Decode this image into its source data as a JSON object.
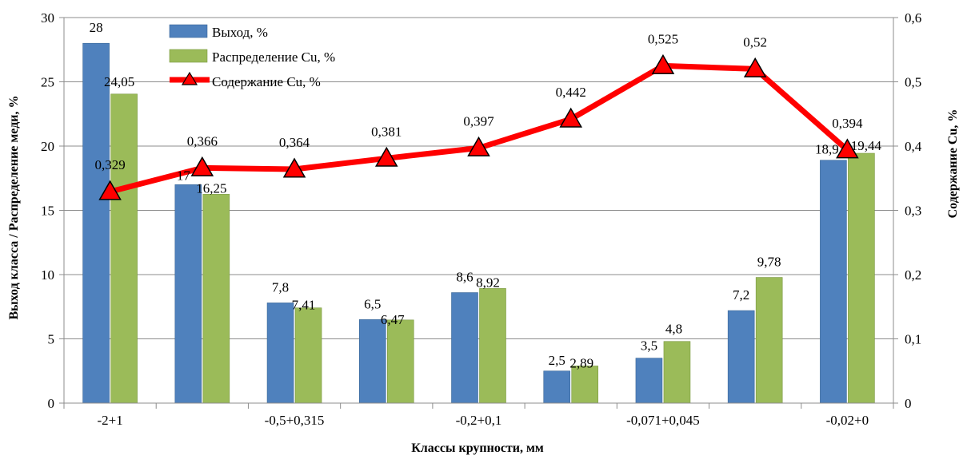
{
  "chart_data": {
    "type": "bar",
    "categories": [
      "-2+1",
      "",
      "-0,5+0,315",
      "",
      "-0,2+0,1",
      "",
      "-0,071+0,045",
      "",
      "-0,02+0"
    ],
    "xlabel": "Классы крупности, мм",
    "ylabel": "Выход класса / Распределение меди, %",
    "y2label": "Содержание   Cu, %",
    "ylim": [
      0,
      30
    ],
    "y2lim": [
      0,
      0.6
    ],
    "yticks": [
      "0",
      "5",
      "10",
      "15",
      "20",
      "25",
      "30"
    ],
    "y2ticks": [
      "0",
      "0,1",
      "0,2",
      "0,3",
      "0,4",
      "0,5",
      "0,6"
    ],
    "grid": true,
    "legend_position": "top-left",
    "series": [
      {
        "name": "Выход, %",
        "kind": "bar",
        "axis": "left",
        "color": "#4F81BD",
        "values": [
          28,
          17,
          7.8,
          6.5,
          8.6,
          2.5,
          3.5,
          7.2,
          18.9
        ],
        "labels": [
          "28",
          "17",
          "7,8",
          "6,5",
          "8,6",
          "2,5",
          "3,5",
          "7,2",
          "18,9"
        ]
      },
      {
        "name": "Распределение  Cu, %",
        "kind": "bar",
        "axis": "left",
        "color": "#9BBB59",
        "values": [
          24.05,
          16.25,
          7.41,
          6.47,
          8.92,
          2.89,
          4.8,
          9.78,
          19.44
        ],
        "labels": [
          "24,05",
          "16,25",
          "7,41",
          "6,47",
          "8,92",
          "2,89",
          "4,8",
          "9,78",
          "19,44"
        ]
      },
      {
        "name": "Содержание   Cu, %",
        "kind": "line",
        "axis": "right",
        "color": "#FF0000",
        "values": [
          0.329,
          0.366,
          0.364,
          0.381,
          0.397,
          0.442,
          0.525,
          0.52,
          0.394
        ],
        "labels": [
          "0,329",
          "0,366",
          "0,364",
          "0,381",
          "0,397",
          "0,442",
          "0,525",
          "0,52",
          "0,394"
        ]
      }
    ]
  }
}
